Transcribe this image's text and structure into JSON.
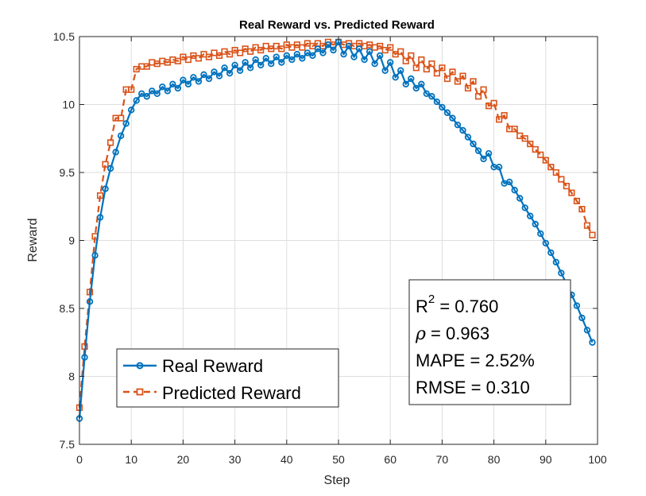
{
  "chart_data": {
    "type": "line",
    "title": "Real Reward vs. Predicted Reward",
    "xlabel": "Step",
    "ylabel": "Reward",
    "xlim": [
      0,
      100
    ],
    "ylim": [
      7.5,
      10.5
    ],
    "grid": true,
    "x_ticks": [
      0,
      10,
      20,
      30,
      40,
      50,
      60,
      70,
      80,
      90,
      100
    ],
    "x_tick_labels": [
      "0",
      "10",
      "20",
      "30",
      "40",
      "50",
      "60",
      "70",
      "80",
      "90",
      "100"
    ],
    "y_ticks": [
      7.5,
      8,
      8.5,
      9,
      9.5,
      10,
      10.5
    ],
    "y_tick_labels": [
      "7.5",
      "8",
      "8.5",
      "9",
      "9.5",
      "10",
      "10.5"
    ],
    "legend_position": "bottom-left",
    "series": [
      {
        "name": "Real Reward",
        "color": "#0072BD",
        "marker": "circle",
        "line": "solid",
        "x": [
          0,
          1,
          2,
          3,
          4,
          5,
          6,
          7,
          8,
          9,
          10,
          11,
          12,
          13,
          14,
          15,
          16,
          17,
          18,
          19,
          20,
          21,
          22,
          23,
          24,
          25,
          26,
          27,
          28,
          29,
          30,
          31,
          32,
          33,
          34,
          35,
          36,
          37,
          38,
          39,
          40,
          41,
          42,
          43,
          44,
          45,
          46,
          47,
          48,
          49,
          50,
          51,
          52,
          53,
          54,
          55,
          56,
          57,
          58,
          59,
          60,
          61,
          62,
          63,
          64,
          65,
          66,
          67,
          68,
          69,
          70,
          71,
          72,
          73,
          74,
          75,
          76,
          77,
          78,
          79,
          80,
          81,
          82,
          83,
          84,
          85,
          86,
          87,
          88,
          89,
          90,
          91,
          92,
          93,
          94,
          95,
          96,
          97,
          98,
          99
        ],
        "values": [
          7.69,
          8.14,
          8.55,
          8.89,
          9.17,
          9.38,
          9.53,
          9.65,
          9.77,
          9.86,
          9.96,
          10.03,
          10.08,
          10.06,
          10.1,
          10.08,
          10.13,
          10.1,
          10.15,
          10.12,
          10.18,
          10.15,
          10.2,
          10.17,
          10.22,
          10.19,
          10.24,
          10.21,
          10.27,
          10.23,
          10.29,
          10.25,
          10.31,
          10.27,
          10.33,
          10.29,
          10.34,
          10.3,
          10.35,
          10.31,
          10.36,
          10.33,
          10.37,
          10.34,
          10.38,
          10.36,
          10.41,
          10.38,
          10.44,
          10.4,
          10.46,
          10.37,
          10.43,
          10.35,
          10.41,
          10.33,
          10.39,
          10.3,
          10.36,
          10.25,
          10.31,
          10.2,
          10.25,
          10.15,
          10.19,
          10.12,
          10.15,
          10.08,
          10.06,
          10.02,
          9.98,
          9.94,
          9.9,
          9.85,
          9.81,
          9.76,
          9.71,
          9.66,
          9.6,
          9.64,
          9.54,
          9.54,
          9.42,
          9.43,
          9.37,
          9.31,
          9.24,
          9.18,
          9.12,
          9.05,
          8.98,
          8.91,
          8.84,
          8.76,
          8.68,
          8.6,
          8.52,
          8.43,
          8.34,
          8.25
        ]
      },
      {
        "name": "Predicted Reward",
        "color": "#D95319",
        "marker": "square",
        "line": "dashed",
        "x": [
          0,
          1,
          2,
          3,
          4,
          5,
          6,
          7,
          8,
          9,
          10,
          11,
          12,
          13,
          14,
          15,
          16,
          17,
          18,
          19,
          20,
          21,
          22,
          23,
          24,
          25,
          26,
          27,
          28,
          29,
          30,
          31,
          32,
          33,
          34,
          35,
          36,
          37,
          38,
          39,
          40,
          41,
          42,
          43,
          44,
          45,
          46,
          47,
          48,
          49,
          50,
          51,
          52,
          53,
          54,
          55,
          56,
          57,
          58,
          59,
          60,
          61,
          62,
          63,
          64,
          65,
          66,
          67,
          68,
          69,
          70,
          71,
          72,
          73,
          74,
          75,
          76,
          77,
          78,
          79,
          80,
          81,
          82,
          83,
          84,
          85,
          86,
          87,
          88,
          89,
          90,
          91,
          92,
          93,
          94,
          95,
          96,
          97,
          98,
          99
        ],
        "values": [
          7.77,
          8.22,
          8.62,
          9.03,
          9.33,
          9.56,
          9.72,
          9.9,
          9.9,
          10.11,
          10.11,
          10.26,
          10.28,
          10.28,
          10.31,
          10.3,
          10.32,
          10.31,
          10.33,
          10.32,
          10.35,
          10.33,
          10.36,
          10.34,
          10.37,
          10.35,
          10.38,
          10.36,
          10.39,
          10.37,
          10.4,
          10.38,
          10.41,
          10.39,
          10.42,
          10.4,
          10.43,
          10.41,
          10.43,
          10.41,
          10.44,
          10.42,
          10.44,
          10.42,
          10.45,
          10.43,
          10.45,
          10.43,
          10.46,
          10.44,
          10.46,
          10.44,
          10.45,
          10.43,
          10.45,
          10.43,
          10.44,
          10.42,
          10.43,
          10.4,
          10.42,
          10.37,
          10.39,
          10.32,
          10.36,
          10.27,
          10.33,
          10.26,
          10.3,
          10.23,
          10.27,
          10.19,
          10.24,
          10.17,
          10.21,
          10.12,
          10.17,
          10.06,
          10.11,
          9.99,
          10.01,
          9.89,
          9.92,
          9.82,
          9.82,
          9.77,
          9.75,
          9.71,
          9.67,
          9.63,
          9.59,
          9.54,
          9.5,
          9.45,
          9.4,
          9.35,
          9.29,
          9.23,
          9.11,
          9.04
        ]
      }
    ],
    "stats_box": {
      "r2_base": "R",
      "r2_exp": "2",
      "r2_value": " = 0.760",
      "rho_symbol": "ρ",
      "rho_value": " = 0.963",
      "mape": "MAPE = 2.52%",
      "rmse": "RMSE = 0.310"
    }
  }
}
